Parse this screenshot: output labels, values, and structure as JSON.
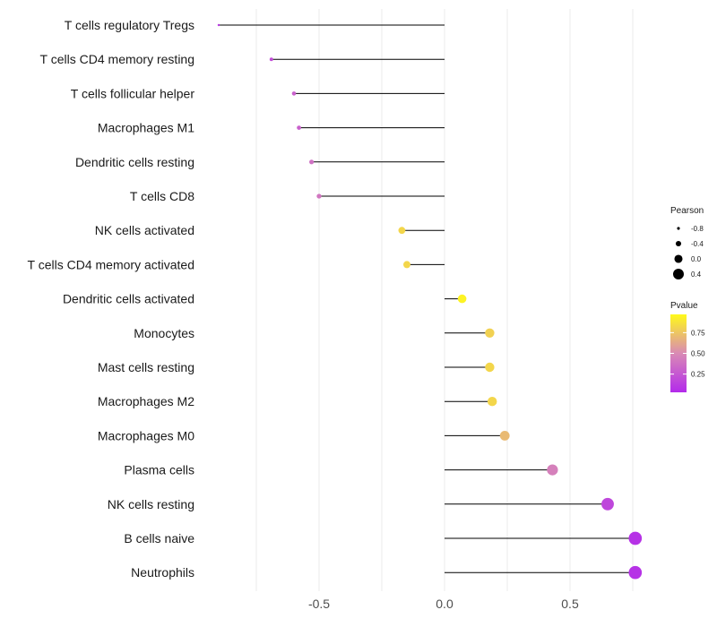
{
  "chart_data": {
    "type": "lollipop",
    "title": "",
    "xlabel": "",
    "ylabel": "",
    "xlim": [
      -0.9,
      0.82
    ],
    "xticks": [
      -0.5,
      0.0,
      0.5
    ],
    "xtick_labels": [
      "-0.5",
      "0.0",
      "0.5"
    ],
    "grid": true,
    "categories": [
      "T cells regulatory  Tregs",
      "T cells CD4 memory resting",
      "T cells follicular helper",
      "Macrophages M1",
      "Dendritic cells resting",
      "T cells CD8",
      "NK cells activated",
      "T cells CD4 memory activated",
      "Dendritic cells activated",
      "Monocytes",
      "Mast cells resting",
      "Macrophages M2",
      "Macrophages M0",
      "Plasma cells",
      "NK cells resting",
      "B cells naive",
      "Neutrophils"
    ],
    "values": [
      -0.9,
      -0.69,
      -0.6,
      -0.58,
      -0.53,
      -0.5,
      -0.17,
      -0.15,
      0.07,
      0.18,
      0.18,
      0.19,
      0.24,
      0.43,
      0.65,
      0.76,
      0.76
    ],
    "pvalues": [
      0.1,
      0.2,
      0.3,
      0.3,
      0.38,
      0.4,
      0.82,
      0.82,
      0.94,
      0.8,
      0.82,
      0.82,
      0.7,
      0.45,
      0.17,
      0.07,
      0.07
    ],
    "legend_size": {
      "title": "Pearson",
      "labels": [
        "-0.8",
        "-0.4",
        "0.0",
        "0.4"
      ],
      "values": [
        -0.8,
        -0.4,
        0.0,
        0.4
      ],
      "placement": "right"
    },
    "legend_color": {
      "title": "Pvalue",
      "labels": [
        "0.75",
        "0.50",
        "0.25"
      ],
      "values": [
        0.75,
        0.5,
        0.25
      ],
      "range": [
        0.03,
        0.97
      ],
      "low_color": "#b32aeb",
      "mid_color": "#d98ab5",
      "high_color": "#fffa1a",
      "placement": "right"
    }
  }
}
